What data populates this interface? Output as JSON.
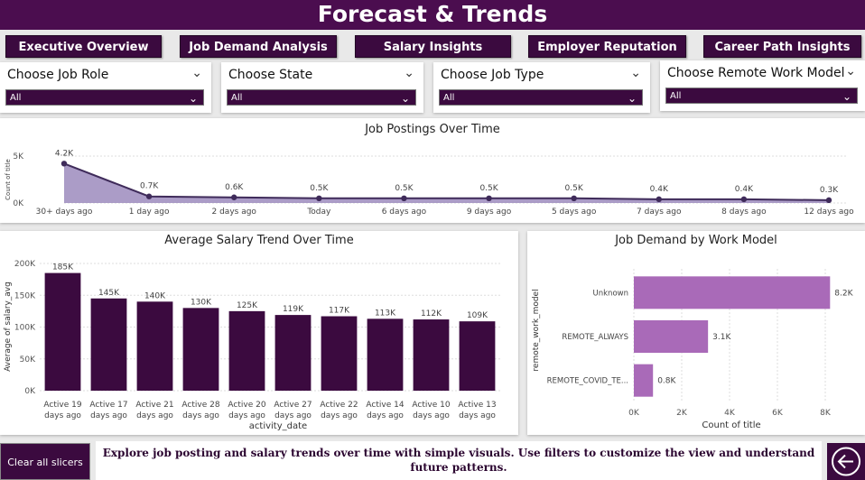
{
  "header": {
    "title": "Forecast & Trends"
  },
  "nav": [
    {
      "label": "Executive Overview"
    },
    {
      "label": "Job Demand Analysis"
    },
    {
      "label": "Salary Insights"
    },
    {
      "label": "Employer Reputation"
    },
    {
      "label": "Career Path Insights"
    }
  ],
  "slicers": [
    {
      "label": "Choose Job Role",
      "value": "All"
    },
    {
      "label": "Choose State",
      "value": "All"
    },
    {
      "label": "Choose Job Type",
      "value": "All"
    },
    {
      "label": "Choose Remote Work Model",
      "value": "All"
    }
  ],
  "colors": {
    "primary": "#3b0a3f",
    "header": "#4b0d4f",
    "area": "#9c8bbd",
    "line": "#3f2b5a",
    "bar_dark": "#3b0a3f",
    "bar_light": "#a96ab8"
  },
  "footer": {
    "clear_label": "Clear all slicers",
    "text": "Explore job posting and salary trends over time with simple visuals. Use filters to customize the view and understand future patterns.",
    "back_icon": "back-arrow-icon"
  },
  "chart_data": [
    {
      "type": "area",
      "title": "Job Postings Over Time",
      "ylabel": "Count of title",
      "xlabel": "",
      "categories": [
        "30+ days ago",
        "1 day ago",
        "2 days ago",
        "Today",
        "6 days ago",
        "9 days ago",
        "5 days ago",
        "7 days ago",
        "8 days ago",
        "12 days ago"
      ],
      "values": [
        4200,
        700,
        600,
        500,
        500,
        500,
        500,
        400,
        400,
        300
      ],
      "labels": [
        "4.2K",
        "0.7K",
        "0.6K",
        "0.5K",
        "0.5K",
        "0.5K",
        "0.5K",
        "0.4K",
        "0.4K",
        "0.3K"
      ],
      "yticks": [
        "0K",
        "5K"
      ],
      "ylim": [
        0,
        5000
      ],
      "grid": true
    },
    {
      "type": "bar",
      "title": "Average Salary Trend Over Time",
      "xlabel": "activity_date",
      "ylabel": "Average of salary_avg",
      "categories": [
        "Active 19 days ago",
        "Active 17 days ago",
        "Active 21 days ago",
        "Active 28 days ago",
        "Active 20 days ago",
        "Active 27 days ago",
        "Active 22 days ago",
        "Active 14 days ago",
        "Active 10 days ago",
        "Active 13 days ago"
      ],
      "category_lines": [
        [
          "Active 19",
          "days ago"
        ],
        [
          "Active 17",
          "days ago"
        ],
        [
          "Active 21",
          "days ago"
        ],
        [
          "Active 28",
          "days ago"
        ],
        [
          "Active 20",
          "days ago"
        ],
        [
          "Active 27",
          "days ago"
        ],
        [
          "Active 22",
          "days ago"
        ],
        [
          "Active 14",
          "days ago"
        ],
        [
          "Active 10",
          "days ago"
        ],
        [
          "Active 13",
          "days ago"
        ]
      ],
      "values": [
        185000,
        145000,
        140000,
        130000,
        125000,
        119000,
        117000,
        113000,
        112000,
        109000
      ],
      "labels": [
        "185K",
        "145K",
        "140K",
        "130K",
        "125K",
        "119K",
        "117K",
        "113K",
        "112K",
        "109K"
      ],
      "yticks": [
        "0K",
        "50K",
        "100K",
        "150K",
        "200K"
      ],
      "ylim": [
        0,
        200000
      ],
      "grid": true
    },
    {
      "type": "bar",
      "orientation": "horizontal",
      "title": "Job Demand by Work Model",
      "xlabel": "Count of title",
      "ylabel": "remote_work_model",
      "categories": [
        "Unknown",
        "REMOTE_ALWAYS",
        "REMOTE_COVID_TE..."
      ],
      "values": [
        8200,
        3100,
        800
      ],
      "labels": [
        "8.2K",
        "3.1K",
        "0.8K"
      ],
      "xticks": [
        "0K",
        "2K",
        "4K",
        "6K",
        "8K"
      ],
      "xlim": [
        0,
        8000
      ],
      "grid": true
    }
  ]
}
